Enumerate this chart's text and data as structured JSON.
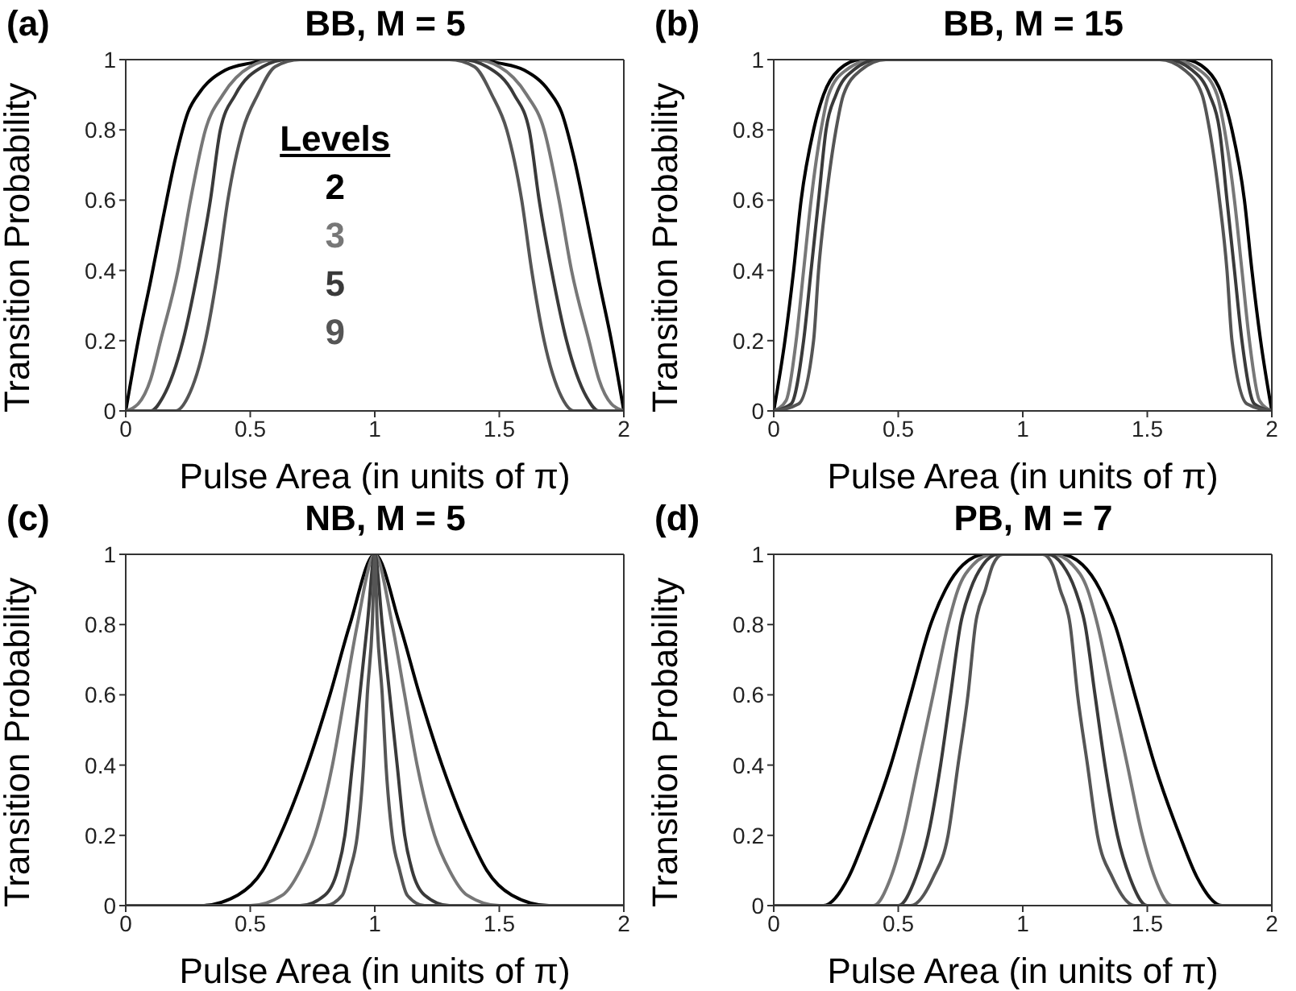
{
  "chart_data": [
    {
      "type": "line",
      "title": "BB, M = 5",
      "xlabel": "Pulse Area (in units of π)",
      "ylabel": "Transition Probability",
      "annotations": [
        "(a)"
      ],
      "legend": "center",
      "legend_title": "Levels",
      "xlim": [
        0,
        2
      ],
      "xticks": [
        0,
        0.5,
        1,
        1.5,
        2
      ],
      "ylim": [
        0,
        1
      ],
      "yticks": [
        0,
        0.2,
        0.4,
        0.6,
        0.8,
        1
      ],
      "grid": false,
      "series": [
        {
          "name": "2",
          "color": "#000000",
          "x": [
            0,
            0.05,
            0.1,
            0.15,
            0.2,
            0.25,
            0.3,
            0.4,
            0.5,
            0.6,
            1.4,
            1.5,
            1.6,
            1.7,
            1.75,
            1.8,
            1.85,
            1.9,
            1.95,
            2
          ],
          "values": [
            0,
            0.2,
            0.37,
            0.55,
            0.72,
            0.85,
            0.91,
            0.97,
            0.99,
            1,
            1,
            0.99,
            0.97,
            0.91,
            0.85,
            0.72,
            0.55,
            0.37,
            0.2,
            0
          ]
        },
        {
          "name": "3",
          "color": "#777777",
          "x": [
            0,
            0.05,
            0.1,
            0.14,
            0.21,
            0.26,
            0.32,
            0.39,
            0.5,
            0.6,
            1.4,
            1.5,
            1.61,
            1.68,
            1.74,
            1.79,
            1.86,
            1.9,
            1.95,
            2
          ],
          "values": [
            0,
            0.02,
            0.09,
            0.2,
            0.4,
            0.6,
            0.8,
            0.9,
            0.98,
            1,
            1,
            0.98,
            0.9,
            0.8,
            0.6,
            0.4,
            0.2,
            0.09,
            0.02,
            0
          ]
        },
        {
          "name": "5",
          "color": "#3a3a3a",
          "x": [
            0,
            0.1,
            0.15,
            0.23,
            0.29,
            0.34,
            0.38,
            0.44,
            0.55,
            0.65,
            1.35,
            1.45,
            1.56,
            1.62,
            1.66,
            1.71,
            1.77,
            1.85,
            1.9,
            2
          ],
          "values": [
            0,
            0,
            0.04,
            0.2,
            0.4,
            0.6,
            0.8,
            0.9,
            0.98,
            1,
            1,
            0.98,
            0.9,
            0.8,
            0.6,
            0.4,
            0.2,
            0.04,
            0,
            0
          ]
        },
        {
          "name": "9",
          "color": "#555555",
          "x": [
            0,
            0.2,
            0.25,
            0.32,
            0.37,
            0.41,
            0.47,
            0.53,
            0.6,
            0.7,
            1.3,
            1.4,
            1.47,
            1.53,
            1.59,
            1.63,
            1.68,
            1.75,
            1.8,
            2
          ],
          "values": [
            0,
            0,
            0.04,
            0.2,
            0.4,
            0.6,
            0.8,
            0.9,
            0.98,
            1,
            1,
            0.98,
            0.9,
            0.8,
            0.6,
            0.4,
            0.2,
            0.04,
            0,
            0
          ]
        }
      ]
    },
    {
      "type": "line",
      "title": "BB, M = 15",
      "xlabel": "Pulse Area (in units of π)",
      "ylabel": "Transition Probability",
      "annotations": [
        "(b)"
      ],
      "xlim": [
        0,
        2
      ],
      "xticks": [
        0,
        0.5,
        1,
        1.5,
        2
      ],
      "ylim": [
        0,
        1
      ],
      "yticks": [
        0,
        0.2,
        0.4,
        0.6,
        0.8,
        1
      ],
      "grid": false,
      "series": [
        {
          "color": "#000000",
          "x": [
            0,
            0.045,
            0.08,
            0.11,
            0.16,
            0.2,
            0.26,
            0.35,
            1.65,
            1.74,
            1.8,
            1.84,
            1.89,
            1.92,
            1.955,
            2
          ],
          "values": [
            0,
            0.2,
            0.4,
            0.6,
            0.8,
            0.9,
            0.97,
            1,
            1,
            0.97,
            0.9,
            0.8,
            0.6,
            0.4,
            0.2,
            0
          ]
        },
        {
          "color": "#777777",
          "x": [
            0,
            0.05,
            0.09,
            0.12,
            0.15,
            0.19,
            0.22,
            0.29,
            0.4,
            1.6,
            1.71,
            1.78,
            1.81,
            1.85,
            1.88,
            1.91,
            1.95,
            2
          ],
          "values": [
            0,
            0.03,
            0.2,
            0.4,
            0.6,
            0.8,
            0.9,
            0.97,
            1,
            1,
            0.97,
            0.9,
            0.8,
            0.6,
            0.4,
            0.2,
            0.03,
            0
          ]
        },
        {
          "color": "#3a3a3a",
          "x": [
            0,
            0.07,
            0.12,
            0.15,
            0.18,
            0.21,
            0.25,
            0.32,
            0.42,
            1.58,
            1.68,
            1.75,
            1.79,
            1.82,
            1.85,
            1.88,
            1.93,
            2
          ],
          "values": [
            0,
            0.02,
            0.2,
            0.4,
            0.6,
            0.8,
            0.9,
            0.97,
            1,
            1,
            0.97,
            0.9,
            0.8,
            0.6,
            0.4,
            0.2,
            0.02,
            0
          ]
        },
        {
          "color": "#555555",
          "x": [
            0,
            0.1,
            0.16,
            0.18,
            0.21,
            0.25,
            0.28,
            0.35,
            0.45,
            1.55,
            1.65,
            1.72,
            1.75,
            1.79,
            1.82,
            1.84,
            1.9,
            2
          ],
          "values": [
            0,
            0.02,
            0.2,
            0.4,
            0.6,
            0.8,
            0.9,
            0.97,
            1,
            1,
            0.97,
            0.9,
            0.8,
            0.6,
            0.4,
            0.2,
            0.02,
            0
          ]
        }
      ]
    },
    {
      "type": "line",
      "title": "NB, M = 5",
      "xlabel": "Pulse Area (in units of π)",
      "ylabel": "Transition Probability",
      "annotations": [
        "(c)"
      ],
      "xlim": [
        0,
        2
      ],
      "xticks": [
        0,
        0.5,
        1,
        1.5,
        2
      ],
      "ylim": [
        0,
        1
      ],
      "yticks": [
        0,
        0.2,
        0.4,
        0.6,
        0.8,
        1
      ],
      "grid": false,
      "series": [
        {
          "color": "#000000",
          "x": [
            0,
            0.3,
            0.45,
            0.55,
            0.62,
            0.73,
            0.82,
            0.9,
            1,
            1.1,
            1.18,
            1.27,
            1.38,
            1.45,
            1.55,
            1.7,
            2
          ],
          "values": [
            0,
            0,
            0.03,
            0.1,
            0.2,
            0.4,
            0.6,
            0.8,
            1,
            0.8,
            0.6,
            0.4,
            0.2,
            0.1,
            0.03,
            0,
            0
          ]
        },
        {
          "color": "#777777",
          "x": [
            0,
            0.5,
            0.63,
            0.7,
            0.76,
            0.83,
            0.88,
            0.93,
            1,
            1.07,
            1.12,
            1.17,
            1.24,
            1.3,
            1.37,
            1.5,
            2
          ],
          "values": [
            0,
            0,
            0.03,
            0.1,
            0.2,
            0.4,
            0.6,
            0.8,
            1,
            0.8,
            0.6,
            0.4,
            0.2,
            0.1,
            0.03,
            0,
            0
          ]
        },
        {
          "color": "#3a3a3a",
          "x": [
            0,
            0.7,
            0.8,
            0.85,
            0.88,
            0.91,
            0.94,
            0.97,
            1,
            1.03,
            1.06,
            1.09,
            1.12,
            1.15,
            1.2,
            1.3,
            2
          ],
          "values": [
            0,
            0,
            0.03,
            0.1,
            0.2,
            0.4,
            0.6,
            0.8,
            1,
            0.8,
            0.6,
            0.4,
            0.2,
            0.1,
            0.03,
            0,
            0
          ]
        },
        {
          "color": "#555555",
          "x": [
            0,
            0.8,
            0.87,
            0.9,
            0.93,
            0.955,
            0.97,
            0.99,
            1,
            1.01,
            1.03,
            1.045,
            1.07,
            1.1,
            1.13,
            1.2,
            2
          ],
          "values": [
            0,
            0,
            0.03,
            0.1,
            0.2,
            0.4,
            0.6,
            0.8,
            1,
            0.8,
            0.6,
            0.4,
            0.2,
            0.1,
            0.03,
            0,
            0
          ]
        }
      ]
    },
    {
      "type": "line",
      "title": "PB, M = 7",
      "xlabel": "Pulse Area (in units of π)",
      "ylabel": "Transition Probability",
      "annotations": [
        "(d)"
      ],
      "xlim": [
        0,
        2
      ],
      "xticks": [
        0,
        0.5,
        1,
        1.5,
        2
      ],
      "ylim": [
        0,
        1
      ],
      "yticks": [
        0,
        0.2,
        0.4,
        0.6,
        0.8,
        1
      ],
      "grid": false,
      "series": [
        {
          "color": "#000000",
          "x": [
            0,
            0.2,
            0.3,
            0.37,
            0.47,
            0.55,
            0.63,
            0.69,
            0.76,
            0.85,
            1.15,
            1.24,
            1.31,
            1.37,
            1.45,
            1.53,
            1.63,
            1.7,
            1.8,
            2
          ],
          "values": [
            0,
            0,
            0.08,
            0.2,
            0.4,
            0.6,
            0.8,
            0.9,
            0.97,
            1,
            1,
            0.97,
            0.9,
            0.8,
            0.6,
            0.4,
            0.2,
            0.08,
            0,
            0
          ]
        },
        {
          "color": "#777777",
          "x": [
            0,
            0.4,
            0.47,
            0.52,
            0.58,
            0.64,
            0.7,
            0.74,
            0.8,
            0.88,
            1.12,
            1.2,
            1.26,
            1.3,
            1.36,
            1.42,
            1.48,
            1.53,
            1.6,
            2
          ],
          "values": [
            0,
            0,
            0.08,
            0.2,
            0.4,
            0.6,
            0.8,
            0.9,
            0.97,
            1,
            1,
            0.97,
            0.9,
            0.8,
            0.6,
            0.4,
            0.2,
            0.08,
            0,
            0
          ]
        },
        {
          "color": "#3a3a3a",
          "x": [
            0,
            0.5,
            0.57,
            0.62,
            0.67,
            0.71,
            0.75,
            0.79,
            0.84,
            0.9,
            1.1,
            1.16,
            1.21,
            1.25,
            1.29,
            1.33,
            1.38,
            1.43,
            1.5,
            2
          ],
          "values": [
            0,
            0,
            0.08,
            0.2,
            0.4,
            0.6,
            0.8,
            0.9,
            0.97,
            1,
            1,
            0.97,
            0.9,
            0.8,
            0.6,
            0.4,
            0.2,
            0.08,
            0,
            0
          ]
        },
        {
          "color": "#555555",
          "x": [
            0,
            0.55,
            0.64,
            0.7,
            0.74,
            0.78,
            0.81,
            0.85,
            0.88,
            0.92,
            1.08,
            1.12,
            1.15,
            1.19,
            1.22,
            1.26,
            1.3,
            1.36,
            1.45,
            2
          ],
          "values": [
            0,
            0,
            0.08,
            0.2,
            0.4,
            0.6,
            0.8,
            0.9,
            0.97,
            1,
            1,
            0.97,
            0.9,
            0.8,
            0.6,
            0.4,
            0.2,
            0.08,
            0,
            0
          ]
        }
      ]
    }
  ]
}
